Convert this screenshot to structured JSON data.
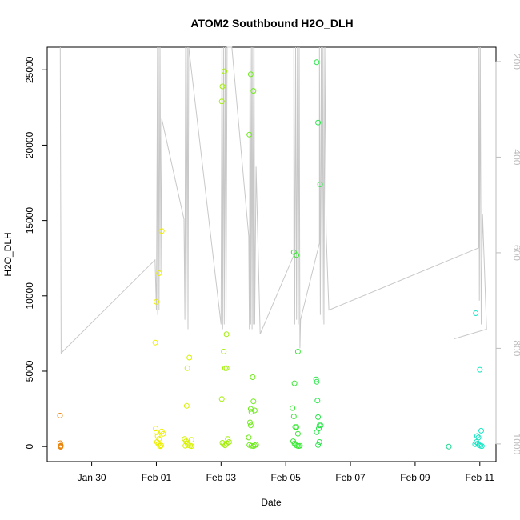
{
  "chart_data": {
    "type": "scatter",
    "title": "ATOM2 Southbound H2O_DLH",
    "xlabel": "Date",
    "ylabel": "H2O_DLH",
    "xlim": [
      "2016-01-28T15:00",
      "2016-02-11T12:00"
    ],
    "ylim": [
      -1000,
      26500
    ],
    "x_ticks": [
      {
        "date": "2016-01-30",
        "label": "Jan 30"
      },
      {
        "date": "2016-02-01",
        "label": "Feb 01"
      },
      {
        "date": "2016-02-03",
        "label": "Feb 03"
      },
      {
        "date": "2016-02-05",
        "label": "Feb 05"
      },
      {
        "date": "2016-02-07",
        "label": "Feb 07"
      },
      {
        "date": "2016-02-09",
        "label": "Feb 09"
      },
      {
        "date": "2016-02-11",
        "label": "Feb 11"
      }
    ],
    "y_ticks": [
      {
        "value": 0,
        "label": "0"
      },
      {
        "value": 5000,
        "label": "5000"
      },
      {
        "value": 10000,
        "label": "10000"
      },
      {
        "value": 15000,
        "label": "15000"
      },
      {
        "value": 20000,
        "label": "20000"
      },
      {
        "value": 25000,
        "label": "25000"
      }
    ],
    "secondary_axis": {
      "position": "right",
      "reversed": true,
      "color": "#bdbdbd",
      "ylim": [
        1037,
        170
      ],
      "ticks": [
        {
          "value": 200,
          "label": "200"
        },
        {
          "value": 400,
          "label": "400"
        },
        {
          "value": 600,
          "label": "600"
        },
        {
          "value": 800,
          "label": "800"
        },
        {
          "value": 1000,
          "label": "1000"
        }
      ]
    },
    "grid": false,
    "line_color": "#c8c8c8",
    "pressure_path": [
      [
        "2016-01-29T00:40",
        170
      ],
      [
        "2016-01-29T01:20",
        810
      ],
      [
        "2016-01-31T23:00",
        615
      ],
      [
        "2016-02-01T00:00",
        720
      ],
      [
        "2016-02-01T00:50",
        170
      ],
      [
        "2016-02-01T01:00",
        730
      ],
      [
        "2016-02-01T01:30",
        170
      ],
      [
        "2016-02-01T02:00",
        720
      ],
      [
        "2016-02-01T02:40",
        170
      ],
      [
        "2016-02-01T03:20",
        640
      ],
      [
        "2016-02-01T04:00",
        320
      ],
      [
        "2016-02-01T20:30",
        530
      ],
      [
        "2016-02-01T21:10",
        740
      ],
      [
        "2016-02-01T21:40",
        170
      ],
      [
        "2016-02-01T22:00",
        750
      ],
      [
        "2016-02-01T23:00",
        170
      ],
      [
        "2016-02-01T23:30",
        760
      ],
      [
        "2016-02-02T00:00",
        170
      ],
      [
        "2016-02-03T00:00",
        750
      ],
      [
        "2016-02-03T00:40",
        170
      ],
      [
        "2016-02-03T01:10",
        760
      ],
      [
        "2016-02-03T01:50",
        170
      ],
      [
        "2016-02-03T02:20",
        750
      ],
      [
        "2016-02-03T03:00",
        170
      ],
      [
        "2016-02-03T03:40",
        760
      ],
      [
        "2016-02-03T04:30",
        170
      ],
      [
        "2016-02-03T08:00",
        170
      ],
      [
        "2016-02-03T20:30",
        565
      ],
      [
        "2016-02-03T21:00",
        760
      ],
      [
        "2016-02-03T21:30",
        170
      ],
      [
        "2016-02-03T22:00",
        750
      ],
      [
        "2016-02-03T22:30",
        170
      ],
      [
        "2016-02-03T23:00",
        760
      ],
      [
        "2016-02-03T23:30",
        170
      ],
      [
        "2016-02-04T00:00",
        750
      ],
      [
        "2016-02-04T00:30",
        170
      ],
      [
        "2016-02-04T01:00",
        750
      ],
      [
        "2016-02-04T02:00",
        420
      ],
      [
        "2016-02-04T05:00",
        770
      ],
      [
        "2016-02-05T06:00",
        605
      ],
      [
        "2016-02-05T06:00",
        170
      ],
      [
        "2016-02-05T06:40",
        750
      ],
      [
        "2016-02-05T07:20",
        170
      ],
      [
        "2016-02-05T08:00",
        740
      ],
      [
        "2016-02-05T08:40",
        170
      ],
      [
        "2016-02-05T09:20",
        750
      ],
      [
        "2016-02-05T10:00",
        170
      ],
      [
        "2016-02-05T10:30",
        800
      ],
      [
        "2016-02-05T11:00",
        740
      ],
      [
        "2016-02-06T01:00",
        580
      ],
      [
        "2016-02-06T01:00",
        170
      ],
      [
        "2016-02-06T01:40",
        730
      ],
      [
        "2016-02-06T02:20",
        170
      ],
      [
        "2016-02-06T03:00",
        740
      ],
      [
        "2016-02-06T03:40",
        170
      ],
      [
        "2016-02-06T04:20",
        750
      ],
      [
        "2016-02-06T05:00",
        170
      ],
      [
        "2016-02-06T06:00",
        560
      ],
      [
        "2016-02-06T08:00",
        720
      ],
      [
        "2016-02-10T23:00",
        590
      ],
      [
        "2016-02-10T23:20",
        170
      ],
      [
        "2016-02-10T23:40",
        700
      ],
      [
        "2016-02-11T00:20",
        170
      ],
      [
        "2016-02-11T01:00",
        750
      ],
      [
        "2016-02-11T02:00",
        520
      ],
      [
        "2016-02-11T05:00",
        760
      ],
      [
        "2016-02-10T05:00",
        780
      ]
    ],
    "series": [
      {
        "color": "#E8850E",
        "points": [
          [
            "2016-01-29T00:30",
            2050
          ],
          [
            "2016-01-29T00:40",
            220
          ],
          [
            "2016-01-29T00:50",
            30
          ],
          [
            "2016-01-29T01:00",
            -20
          ],
          [
            "2016-01-29T01:10",
            60
          ]
        ]
      },
      {
        "color": "#EDEF00",
        "points": [
          [
            "2016-01-31T23:10",
            6900
          ],
          [
            "2016-02-01T00:00",
            9600
          ],
          [
            "2016-02-01T02:00",
            11500
          ],
          [
            "2016-02-01T04:00",
            14300
          ],
          [
            "2016-01-31T23:30",
            1200
          ],
          [
            "2016-02-01T00:00",
            950
          ],
          [
            "2016-02-01T01:00",
            700
          ],
          [
            "2016-02-01T02:00",
            500
          ],
          [
            "2016-02-01T00:30",
            300
          ],
          [
            "2016-02-01T01:30",
            150
          ],
          [
            "2016-02-01T02:30",
            50
          ],
          [
            "2016-02-01T03:00",
            20
          ],
          [
            "2016-02-01T03:30",
            80
          ],
          [
            "2016-02-01T04:00",
            1000
          ],
          [
            "2016-02-01T05:00",
            850
          ]
        ]
      },
      {
        "color": "#D8F200",
        "points": [
          [
            "2016-02-01T22:30",
            2700
          ],
          [
            "2016-02-01T23:00",
            5200
          ],
          [
            "2016-02-02T00:30",
            5900
          ],
          [
            "2016-02-01T21:00",
            500
          ],
          [
            "2016-02-01T22:00",
            350
          ],
          [
            "2016-02-01T23:00",
            200
          ],
          [
            "2016-02-02T00:00",
            100
          ],
          [
            "2016-02-02T01:00",
            50
          ],
          [
            "2016-02-02T02:00",
            30
          ],
          [
            "2016-02-01T21:30",
            50
          ],
          [
            "2016-02-02T02:00",
            450
          ]
        ]
      },
      {
        "color": "#A4EE0B",
        "points": [
          [
            "2016-02-03T00:30",
            22900
          ],
          [
            "2016-02-03T01:00",
            23900
          ],
          [
            "2016-02-03T02:30",
            24900
          ],
          [
            "2016-02-03T04:00",
            7450
          ],
          [
            "2016-02-03T02:00",
            6300
          ],
          [
            "2016-02-03T03:00",
            5200
          ],
          [
            "2016-02-03T04:00",
            5200
          ],
          [
            "2016-02-03T00:30",
            3150
          ],
          [
            "2016-02-03T01:00",
            250
          ],
          [
            "2016-02-03T02:00",
            150
          ],
          [
            "2016-02-03T03:00",
            80
          ],
          [
            "2016-02-03T04:00",
            200
          ],
          [
            "2016-02-03T05:00",
            500
          ],
          [
            "2016-02-03T06:00",
            300
          ]
        ]
      },
      {
        "color": "#6EEB1A",
        "points": [
          [
            "2016-02-03T21:00",
            20700
          ],
          [
            "2016-02-03T22:00",
            24700
          ],
          [
            "2016-02-04T00:00",
            23600
          ],
          [
            "2016-02-03T23:30",
            4600
          ],
          [
            "2016-02-03T22:00",
            2500
          ],
          [
            "2016-02-04T00:00",
            3000
          ],
          [
            "2016-02-04T01:00",
            2400
          ],
          [
            "2016-02-03T22:30",
            2300
          ],
          [
            "2016-02-03T21:30",
            1600
          ],
          [
            "2016-02-03T22:00",
            1400
          ],
          [
            "2016-02-03T20:30",
            600
          ],
          [
            "2016-02-03T21:00",
            100
          ],
          [
            "2016-02-03T22:30",
            50
          ],
          [
            "2016-02-04T00:00",
            30
          ],
          [
            "2016-02-04T01:00",
            80
          ],
          [
            "2016-02-04T02:00",
            120
          ]
        ]
      },
      {
        "color": "#3BE837",
        "points": [
          [
            "2016-02-05T06:00",
            12900
          ],
          [
            "2016-02-05T08:00",
            12700
          ],
          [
            "2016-02-05T09:00",
            6300
          ],
          [
            "2016-02-05T06:30",
            4200
          ],
          [
            "2016-02-05T05:00",
            2550
          ],
          [
            "2016-02-05T06:00",
            2000
          ],
          [
            "2016-02-05T07:00",
            1300
          ],
          [
            "2016-02-05T08:00",
            1300
          ],
          [
            "2016-02-05T09:00",
            850
          ],
          [
            "2016-02-05T05:30",
            350
          ],
          [
            "2016-02-05T06:30",
            200
          ],
          [
            "2016-02-05T07:30",
            100
          ],
          [
            "2016-02-05T08:30",
            50
          ],
          [
            "2016-02-05T09:30",
            30
          ],
          [
            "2016-02-05T10:30",
            50
          ]
        ]
      },
      {
        "color": "#2AE64A",
        "points": [
          [
            "2016-02-05T23:00",
            25500
          ],
          [
            "2016-02-06T00:00",
            21500
          ],
          [
            "2016-02-06T01:30",
            17400
          ],
          [
            "2016-02-05T22:30",
            4450
          ],
          [
            "2016-02-05T23:00",
            4300
          ],
          [
            "2016-02-05T23:30",
            3050
          ],
          [
            "2016-02-06T00:00",
            1950
          ],
          [
            "2016-02-06T01:00",
            1400
          ],
          [
            "2016-02-06T02:00",
            1400
          ],
          [
            "2016-02-05T23:00",
            950
          ],
          [
            "2016-02-06T00:30",
            1200
          ],
          [
            "2016-02-06T01:00",
            300
          ],
          [
            "2016-02-06T00:00",
            100
          ]
        ]
      },
      {
        "color": "#11D88A",
        "points": [
          [
            "2016-02-10T01:00",
            0
          ]
        ]
      },
      {
        "color": "#19E5C4",
        "points": [
          [
            "2016-02-10T21:00",
            8850
          ],
          [
            "2016-02-11T00:00",
            5100
          ],
          [
            "2016-02-11T01:00",
            1050
          ],
          [
            "2016-02-10T22:00",
            700
          ],
          [
            "2016-02-10T23:00",
            600
          ],
          [
            "2016-02-10T21:30",
            300
          ],
          [
            "2016-02-10T22:30",
            200
          ],
          [
            "2016-02-10T23:30",
            100
          ],
          [
            "2016-02-11T00:30",
            50
          ],
          [
            "2016-02-11T01:30",
            30
          ],
          [
            "2016-02-10T20:30",
            150
          ]
        ]
      }
    ]
  }
}
